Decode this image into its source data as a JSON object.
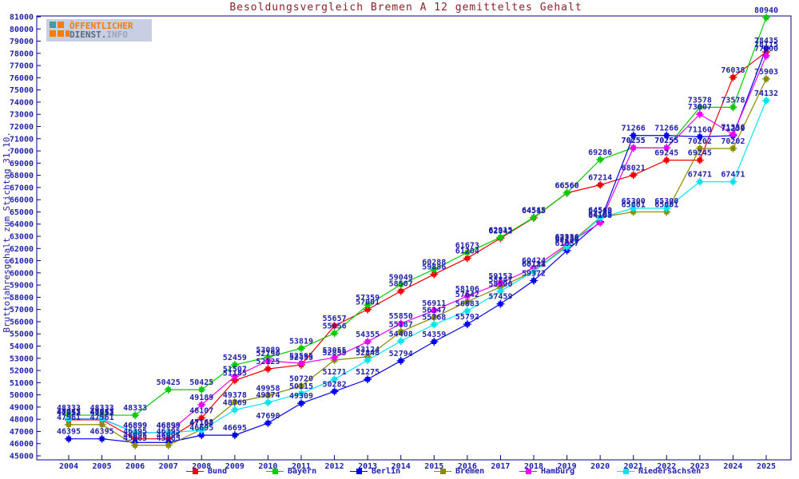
{
  "logo": {
    "line1": "ÖFFENTLICHER",
    "line2a": "DIENST.",
    "line2b": "INFO",
    "orange": "#f97b00",
    "teal": "#3f9ea0",
    "bg": "#c9cfe2"
  },
  "colors": {
    "frame": "#000088",
    "text": "#2222aa",
    "title": "#8b2222"
  },
  "chart_data": {
    "type": "line",
    "title": "Besoldungsvergleich Bremen A 12 gemitteltes Gehalt",
    "ylabel": "Bruttojahresgehalt zum Stichtag 31.10.",
    "xlabel": "",
    "ylim": [
      45000,
      81000
    ],
    "ytick_step": 1000,
    "grid": false,
    "legend_position": "bottom",
    "x": [
      2004,
      2005,
      2006,
      2007,
      2008,
      2009,
      2010,
      2011,
      2012,
      2013,
      2014,
      2015,
      2016,
      2017,
      2018,
      2019,
      2020,
      2021,
      2022,
      2023,
      2024,
      2025
    ],
    "yticks": [
      45000,
      46000,
      47000,
      48000,
      49000,
      50000,
      51000,
      52000,
      53000,
      54000,
      55000,
      56000,
      57000,
      58000,
      59000,
      60000,
      61000,
      62000,
      63000,
      64000,
      65000,
      66000,
      67000,
      68000,
      69000,
      70000,
      71000,
      72000,
      73000,
      74000,
      75000,
      76000,
      77000,
      78000,
      79000,
      80000,
      81000
    ],
    "series": [
      {
        "name": "Bund",
        "color": "#ee0000",
        "values": [
          47951,
          47951,
          46395,
          46395,
          48107,
          51185,
          52125,
          52455,
          55657,
          57001,
          58507,
          59886,
          61204,
          62842,
          64515,
          66560,
          67214,
          68021,
          69245,
          69245,
          76038,
          78115
        ]
      },
      {
        "name": "Bayern",
        "color": "#00cc00",
        "values": [
          48333,
          48333,
          48333,
          50425,
          50425,
          52459,
          53089,
          53819,
          55056,
          57359,
          59049,
          60288,
          61673,
          62915,
          64545,
          66560,
          69286,
          70255,
          70255,
          73578,
          73578,
          80940
        ]
      },
      {
        "name": "Berlin",
        "color": "#0000ee",
        "values": [
          46395,
          46395,
          46095,
          46095,
          46695,
          46695,
          47690,
          49309,
          50282,
          51275,
          52794,
          54359,
          55792,
          57459,
          59372,
          61837,
          64199,
          71266,
          71266,
          71160,
          71250,
          78435
        ]
      },
      {
        "name": "Bremen",
        "color": "#8b8b00",
        "values": [
          47561,
          47561,
          45865,
          45865,
          47168,
          49378,
          49958,
          50720,
          52855,
          53124,
          55187,
          56347,
          57642,
          58847,
          60131,
          62236,
          64549,
          65001,
          65001,
          70202,
          70202,
          75903
        ]
      },
      {
        "name": "Hamburg",
        "color": "#ee00ee",
        "values": [
          48043,
          48043,
          46899,
          46899,
          49189,
          51507,
          52790,
          52595,
          53055,
          54355,
          55850,
          56911,
          58106,
          59153,
          60424,
          62336,
          64108,
          70255,
          70255,
          73007,
          71356,
          77800
        ]
      },
      {
        "name": "Niedersachsen",
        "color": "#00e5ee",
        "values": [
          48013,
          48013,
          46899,
          46899,
          47102,
          48769,
          49374,
          50115,
          51271,
          52848,
          54408,
          55768,
          56883,
          58500,
          60124,
          62129,
          64508,
          65300,
          65300,
          67471,
          67471,
          74132
        ]
      }
    ]
  }
}
